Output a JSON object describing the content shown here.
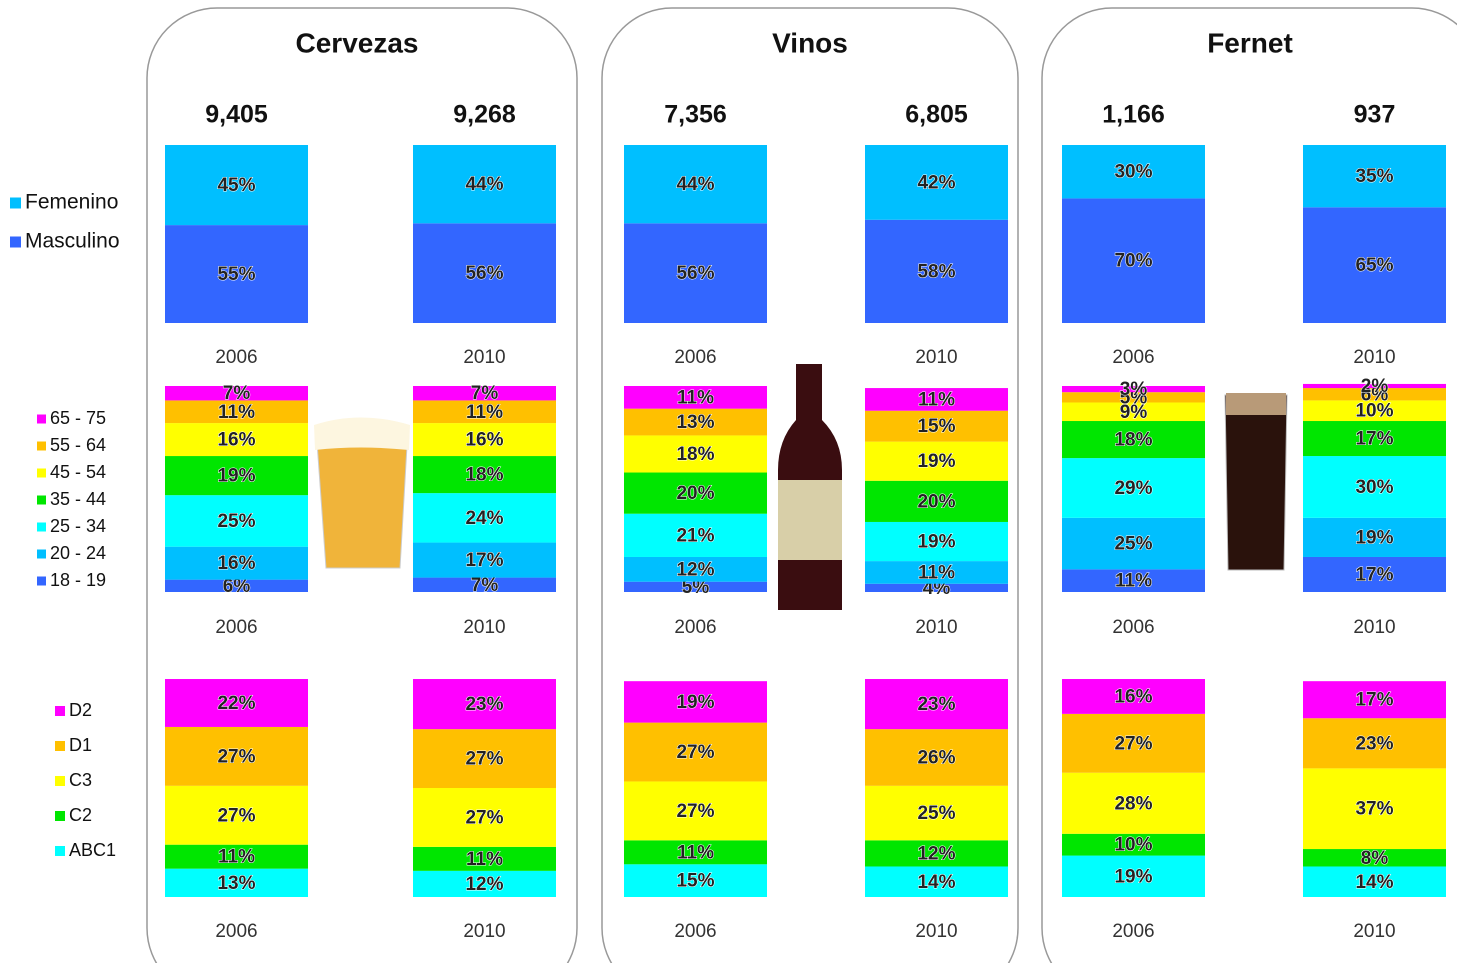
{
  "chart_data": [
    {
      "type": "stacked_bar",
      "title": "Cervezas",
      "categories": [
        "2006",
        "2010"
      ],
      "totals": [
        9405,
        9268
      ],
      "total_labels": [
        "9,405",
        "9,268"
      ],
      "gender": {
        "series": [
          {
            "name": "Femenino",
            "color": "#00bfff",
            "values": [
              45,
              44
            ],
            "value_labels": [
              "45%",
              "44%"
            ]
          },
          {
            "name": "Masculino",
            "color": "#3366ff",
            "values": [
              55,
              56
            ],
            "value_labels": [
              "55%",
              "56%"
            ]
          }
        ]
      },
      "age": {
        "series": [
          {
            "name": "65 - 75",
            "color": "#ff00ff",
            "values": [
              7,
              7
            ],
            "value_labels": [
              "7%",
              "7%"
            ]
          },
          {
            "name": "55 - 64",
            "color": "#ffc000",
            "values": [
              11,
              11
            ],
            "value_labels": [
              "11%",
              "11%"
            ]
          },
          {
            "name": "45 - 54",
            "color": "#ffff00",
            "values": [
              16,
              16
            ],
            "value_labels": [
              "16%",
              "16%"
            ]
          },
          {
            "name": "35 - 44",
            "color": "#00e600",
            "values": [
              19,
              18
            ],
            "value_labels": [
              "19%",
              "18%"
            ]
          },
          {
            "name": "25 - 34",
            "color": "#00ffff",
            "values": [
              25,
              24
            ],
            "value_labels": [
              "25%",
              "24%"
            ]
          },
          {
            "name": "20 - 24",
            "color": "#00bfff",
            "values": [
              16,
              17
            ],
            "value_labels": [
              "16%",
              "17%"
            ]
          },
          {
            "name": "18 - 19",
            "color": "#3366ff",
            "values": [
              6,
              7
            ],
            "value_labels": [
              "6%",
              "7%"
            ]
          }
        ]
      },
      "nse": {
        "series": [
          {
            "name": "D2",
            "color": "#ff00ff",
            "values": [
              22,
              23
            ],
            "value_labels": [
              "22%",
              "23%"
            ]
          },
          {
            "name": "D1",
            "color": "#ffc000",
            "values": [
              27,
              27
            ],
            "value_labels": [
              "27%",
              "27%"
            ]
          },
          {
            "name": "C3",
            "color": "#ffff00",
            "values": [
              27,
              27
            ],
            "value_labels": [
              "27%",
              "27%"
            ]
          },
          {
            "name": "C2",
            "color": "#00e600",
            "values": [
              11,
              11
            ],
            "value_labels": [
              "11%",
              "11%"
            ]
          },
          {
            "name": "ABC1",
            "color": "#00ffff",
            "values": [
              13,
              12
            ],
            "value_labels": [
              "13%",
              "12%"
            ]
          }
        ]
      }
    },
    {
      "type": "stacked_bar",
      "title": "Vinos",
      "categories": [
        "2006",
        "2010"
      ],
      "totals": [
        7356,
        6805
      ],
      "total_labels": [
        "7,356",
        "6,805"
      ],
      "gender": {
        "series": [
          {
            "name": "Femenino",
            "color": "#00bfff",
            "values": [
              44,
              42
            ],
            "value_labels": [
              "44%",
              "42%"
            ]
          },
          {
            "name": "Masculino",
            "color": "#3366ff",
            "values": [
              56,
              58
            ],
            "value_labels": [
              "56%",
              "58%"
            ]
          }
        ]
      },
      "age": {
        "series": [
          {
            "name": "65 - 75",
            "color": "#ff00ff",
            "values": [
              11,
              11
            ],
            "value_labels": [
              "11%",
              "11%"
            ]
          },
          {
            "name": "55 - 64",
            "color": "#ffc000",
            "values": [
              13,
              15
            ],
            "value_labels": [
              "13%",
              "15%"
            ]
          },
          {
            "name": "45 - 54",
            "color": "#ffff00",
            "values": [
              18,
              19
            ],
            "value_labels": [
              "18%",
              "19%"
            ]
          },
          {
            "name": "35 - 44",
            "color": "#00e600",
            "values": [
              20,
              20
            ],
            "value_labels": [
              "20%",
              "20%"
            ]
          },
          {
            "name": "25 - 34",
            "color": "#00ffff",
            "values": [
              21,
              19
            ],
            "value_labels": [
              "21%",
              "19%"
            ]
          },
          {
            "name": "20 - 24",
            "color": "#00bfff",
            "values": [
              12,
              11
            ],
            "value_labels": [
              "12%",
              "11%"
            ]
          },
          {
            "name": "18 - 19",
            "color": "#3366ff",
            "values": [
              5,
              4
            ],
            "value_labels": [
              "5%",
              "4%"
            ]
          }
        ]
      },
      "nse": {
        "series": [
          {
            "name": "D2",
            "color": "#ff00ff",
            "values": [
              19,
              23
            ],
            "value_labels": [
              "19%",
              "23%"
            ]
          },
          {
            "name": "D1",
            "color": "#ffc000",
            "values": [
              27,
              26
            ],
            "value_labels": [
              "27%",
              "26%"
            ]
          },
          {
            "name": "C3",
            "color": "#ffff00",
            "values": [
              27,
              25
            ],
            "value_labels": [
              "27%",
              "25%"
            ]
          },
          {
            "name": "C2",
            "color": "#00e600",
            "values": [
              11,
              12
            ],
            "value_labels": [
              "11%",
              "12%"
            ]
          },
          {
            "name": "ABC1",
            "color": "#00ffff",
            "values": [
              15,
              14
            ],
            "value_labels": [
              "15%",
              "14%"
            ]
          }
        ]
      }
    },
    {
      "type": "stacked_bar",
      "title": "Fernet",
      "categories": [
        "2006",
        "2010"
      ],
      "totals": [
        1166,
        937
      ],
      "total_labels": [
        "1,166",
        "937"
      ],
      "gender": {
        "series": [
          {
            "name": "Femenino",
            "color": "#00bfff",
            "values": [
              30,
              35
            ],
            "value_labels": [
              "30%",
              "35%"
            ]
          },
          {
            "name": "Masculino",
            "color": "#3366ff",
            "values": [
              70,
              65
            ],
            "value_labels": [
              "70%",
              "65%"
            ]
          }
        ]
      },
      "age": {
        "series": [
          {
            "name": "65 - 75",
            "color": "#ff00ff",
            "values": [
              3,
              2
            ],
            "value_labels": [
              "3%",
              "2%"
            ]
          },
          {
            "name": "55 - 64",
            "color": "#ffc000",
            "values": [
              5,
              6
            ],
            "value_labels": [
              "5%",
              "6%"
            ]
          },
          {
            "name": "45 - 54",
            "color": "#ffff00",
            "values": [
              9,
              10
            ],
            "value_labels": [
              "9%",
              "10%"
            ]
          },
          {
            "name": "35 - 44",
            "color": "#00e600",
            "values": [
              18,
              17
            ],
            "value_labels": [
              "18%",
              "17%"
            ]
          },
          {
            "name": "25 - 34",
            "color": "#00ffff",
            "values": [
              29,
              30
            ],
            "value_labels": [
              "29%",
              "30%"
            ]
          },
          {
            "name": "20 - 24",
            "color": "#00bfff",
            "values": [
              25,
              19
            ],
            "value_labels": [
              "25%",
              "19%"
            ]
          },
          {
            "name": "18 - 19",
            "color": "#3366ff",
            "values": [
              11,
              17
            ],
            "value_labels": [
              "11%",
              "17%"
            ]
          }
        ]
      },
      "nse": {
        "series": [
          {
            "name": "D2",
            "color": "#ff00ff",
            "values": [
              16,
              17
            ],
            "value_labels": [
              "16%",
              "17%"
            ]
          },
          {
            "name": "D1",
            "color": "#ffc000",
            "values": [
              27,
              23
            ],
            "value_labels": [
              "27%",
              "23%"
            ]
          },
          {
            "name": "C3",
            "color": "#ffff00",
            "values": [
              28,
              37
            ],
            "value_labels": [
              "28%",
              "37%"
            ]
          },
          {
            "name": "C2",
            "color": "#00e600",
            "values": [
              10,
              8
            ],
            "value_labels": [
              "10%",
              "8%"
            ]
          },
          {
            "name": "ABC1",
            "color": "#00ffff",
            "values": [
              19,
              14
            ],
            "value_labels": [
              "19%",
              "14%"
            ]
          }
        ]
      }
    }
  ]
}
